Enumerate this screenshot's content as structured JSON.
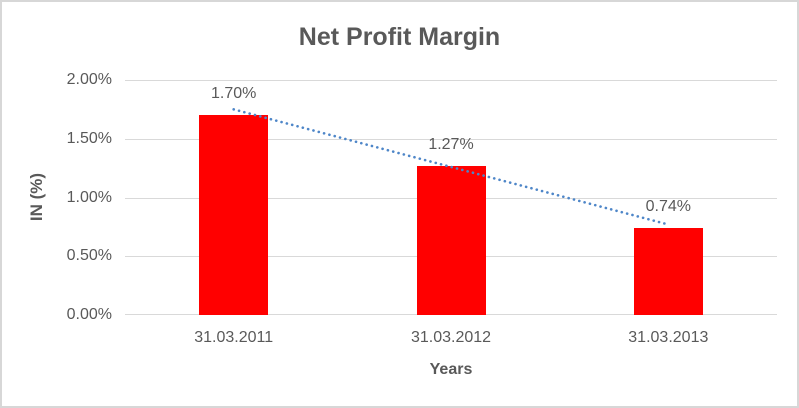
{
  "frame": {
    "background": "#FFFFFF",
    "border_color": "#D7D7D7"
  },
  "chart_data": {
    "type": "bar",
    "title": "Net Profit Margin",
    "xlabel": "Years",
    "ylabel": "IN (%)",
    "categories": [
      "31.03.2011",
      "31.03.2012",
      "31.03.2013"
    ],
    "values": [
      1.7,
      1.27,
      0.74
    ],
    "data_labels": [
      "1.70%",
      "1.27%",
      "0.74%"
    ],
    "ylim": [
      0,
      2
    ],
    "ytick_values": [
      0,
      0.5,
      1,
      1.5,
      2
    ],
    "ytick_labels": [
      "0.00%",
      "0.50%",
      "1.00%",
      "1.50%",
      "2.00%"
    ],
    "grid": true,
    "legend": "none",
    "bar_color": "#FF0000",
    "text_color": "#595959",
    "grid_color": "#D9D9D9",
    "trendline": {
      "type": "linear",
      "style": "dotted",
      "color": "#4E86C8",
      "start_value": 1.75,
      "end_value": 0.77
    }
  }
}
